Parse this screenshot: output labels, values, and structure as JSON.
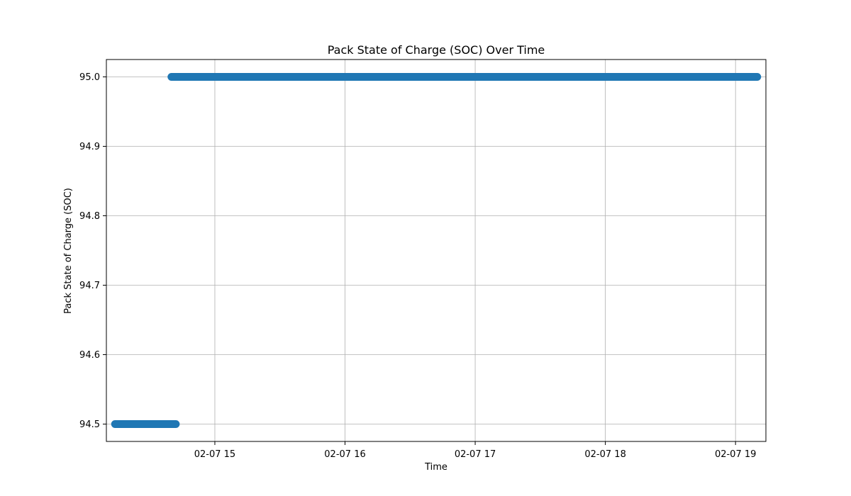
{
  "chart_data": {
    "type": "scatter",
    "title": "Pack State of Charge (SOC) Over Time",
    "xlabel": "Time",
    "ylabel": "Pack State of Charge (SOC)",
    "x_ticks": [
      "02-07 15",
      "02-07 16",
      "02-07 17",
      "02-07 18",
      "02-07 19"
    ],
    "y_ticks": [
      "94.5",
      "94.6",
      "94.7",
      "94.8",
      "94.9",
      "95.0"
    ],
    "xlim": [
      "2024-02-07T14:10",
      "2024-02-07T19:14"
    ],
    "ylim": [
      94.475,
      95.025
    ],
    "grid": true,
    "series": [
      {
        "color": "#1f77b4",
        "segments": [
          {
            "x_start": "2024-02-07T14:14",
            "x_end": "2024-02-07T14:42",
            "y": 94.5
          },
          {
            "x_start": "2024-02-07T14:40",
            "x_end": "2024-02-07T19:10",
            "y": 95.0
          }
        ]
      }
    ]
  }
}
